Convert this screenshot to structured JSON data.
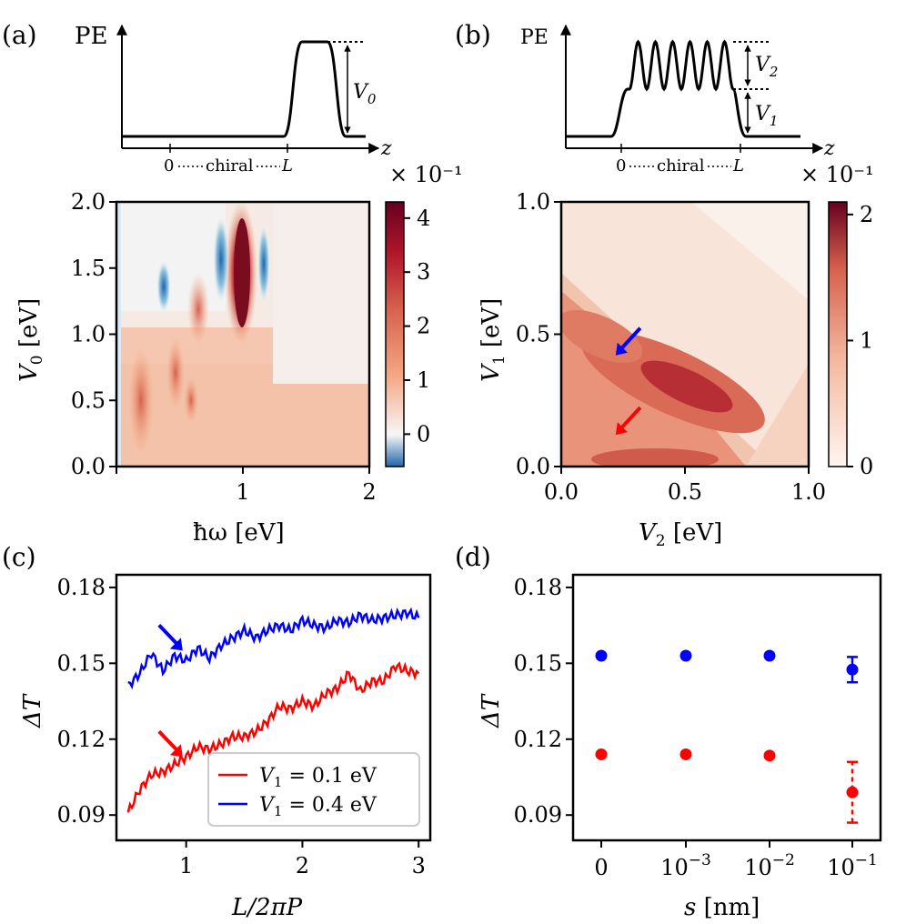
{
  "chart_data": [
    {
      "panel": "(a)",
      "type": "line",
      "title": "",
      "ylabel": "PE",
      "xlabel": "z",
      "annotations": {
        "x_left": "0",
        "x_mid": "chiral",
        "x_right": "L",
        "barrier": "V0"
      },
      "description": "potential profile: flat baseline, single barrier right of L"
    },
    {
      "panel": "(b)",
      "type": "line",
      "ylabel": "PE",
      "xlabel": "z",
      "annotations": {
        "x_left": "0",
        "x_mid": "chiral",
        "x_right": "L",
        "upper": "V2",
        "lower": "V1"
      },
      "description": "potential profile: raised plateau of height V1 with 6 oscillations of amplitude V2 within 0..L"
    },
    {
      "panel": "(a) lower",
      "type": "heatmap",
      "xlabel": "ħω [eV]",
      "ylabel": "V0 [eV]",
      "xlim": [
        0,
        2
      ],
      "ylim": [
        0,
        2
      ],
      "xticks": [
        "0",
        "1",
        "2"
      ],
      "yticks": [
        "0.0",
        "0.5",
        "1.0",
        "1.5",
        "2.0"
      ],
      "colorbar": {
        "scale_label": "× 10⁻¹",
        "ticks": [
          "0",
          "1",
          "2",
          "3",
          "4"
        ],
        "min": -0.6,
        "max": 4.3,
        "cmap": "RdBu_r"
      },
      "features": [
        {
          "x": 1.05,
          "y": 1.55,
          "value": 4.2,
          "note": "dark red maximum"
        },
        {
          "x": 0.85,
          "y": 1.6,
          "value": -0.5,
          "note": "blue stripe"
        },
        {
          "x": 0.4,
          "y": 1.3,
          "value": -0.4,
          "note": "blue stripe"
        },
        {
          "x": 1.2,
          "y": 1.5,
          "value": -0.3,
          "note": "blue stripe"
        }
      ]
    },
    {
      "panel": "(b) lower",
      "type": "heatmap",
      "xlabel": "V2 [eV]",
      "ylabel": "V1 [eV]",
      "xlim": [
        0,
        1
      ],
      "ylim": [
        0,
        1
      ],
      "xticks": [
        "0.0",
        "0.5",
        "1.0"
      ],
      "yticks": [
        "0.0",
        "0.5",
        "1.0"
      ],
      "colorbar": {
        "scale_label": "× 10⁻¹",
        "ticks": [
          "0",
          "1",
          "2"
        ],
        "min": 0,
        "max": 2.1,
        "cmap": "Reds"
      },
      "arrows": [
        {
          "x": 0.22,
          "y": 0.42,
          "color": "#0000ff"
        },
        {
          "x": 0.22,
          "y": 0.12,
          "color": "#ff0000"
        }
      ],
      "features": [
        {
          "x": 0.45,
          "y": 0.28,
          "value": 2.0,
          "note": "maximum ridge"
        }
      ]
    },
    {
      "panel": "(c)",
      "type": "line",
      "xlabel": "L/2πP",
      "ylabel": "ΔT",
      "xlim": [
        0.4,
        3.1
      ],
      "ylim": [
        0.08,
        0.185
      ],
      "xticks": [
        "1",
        "2",
        "3"
      ],
      "yticks": [
        "0.09",
        "0.12",
        "0.15",
        "0.18"
      ],
      "series": [
        {
          "name": "V1 = 0.1 eV",
          "legend_lhs": "V",
          "legend_sub": "1",
          "legend_rhs": "= 0.1 eV",
          "color": "#ff0000",
          "x": [
            0.5,
            0.6,
            0.7,
            0.8,
            0.9,
            1.0,
            1.1,
            1.2,
            1.3,
            1.4,
            1.5,
            1.6,
            1.7,
            1.8,
            1.9,
            2.0,
            2.1,
            2.2,
            2.3,
            2.4,
            2.5,
            2.6,
            2.7,
            2.8,
            2.9,
            3.0
          ],
          "y": [
            0.091,
            0.1,
            0.106,
            0.107,
            0.11,
            0.113,
            0.117,
            0.116,
            0.118,
            0.121,
            0.121,
            0.123,
            0.127,
            0.133,
            0.132,
            0.135,
            0.133,
            0.138,
            0.14,
            0.146,
            0.139,
            0.143,
            0.143,
            0.149,
            0.147,
            0.146
          ]
        },
        {
          "name": "V1 = 0.4 eV",
          "legend_lhs": "V",
          "legend_sub": "1",
          "legend_rhs": "= 0.4 eV",
          "color": "#0000ff",
          "x": [
            0.5,
            0.6,
            0.7,
            0.8,
            0.9,
            1.0,
            1.1,
            1.2,
            1.3,
            1.4,
            1.5,
            1.6,
            1.7,
            1.8,
            1.9,
            2.0,
            2.1,
            2.2,
            2.3,
            2.4,
            2.5,
            2.6,
            2.7,
            2.8,
            2.9,
            3.0
          ],
          "y": [
            0.141,
            0.146,
            0.154,
            0.147,
            0.153,
            0.151,
            0.156,
            0.152,
            0.157,
            0.16,
            0.163,
            0.16,
            0.163,
            0.165,
            0.163,
            0.167,
            0.165,
            0.164,
            0.167,
            0.166,
            0.169,
            0.167,
            0.168,
            0.169,
            0.17,
            0.168
          ]
        }
      ],
      "arrows": [
        {
          "x": 0.97,
          "y": 0.155,
          "color": "#0000ff"
        },
        {
          "x": 0.97,
          "y": 0.113,
          "color": "#ff0000"
        }
      ]
    },
    {
      "panel": "(d)",
      "type": "scatter",
      "xlabel": "s [nm]",
      "ylabel": "ΔT",
      "ylim": [
        0.08,
        0.185
      ],
      "categories": [
        "0",
        "10⁻³",
        "10⁻²",
        "10⁻¹"
      ],
      "xtick_base": [
        "0",
        "10",
        "10",
        "10"
      ],
      "xtick_exp": [
        "",
        "−3",
        "−2",
        "−1"
      ],
      "yticks": [
        "0.09",
        "0.12",
        "0.15",
        "0.18"
      ],
      "series": [
        {
          "name": "V1 = 0.4 eV",
          "color": "#0000ff",
          "values": [
            0.153,
            0.153,
            0.153,
            0.1475
          ],
          "errors": [
            0,
            0,
            0,
            0.005
          ]
        },
        {
          "name": "V1 = 0.1 eV",
          "color": "#ff0000",
          "values": [
            0.114,
            0.114,
            0.1135,
            0.099
          ],
          "errors": [
            0,
            0,
            0,
            0.012
          ]
        }
      ]
    }
  ],
  "panel_labels": [
    "(a)",
    "(b)",
    "(c)",
    "(d)"
  ],
  "colors": {
    "red": "#ff0000",
    "blue": "#0000ff",
    "dark_red": "#67001f"
  }
}
